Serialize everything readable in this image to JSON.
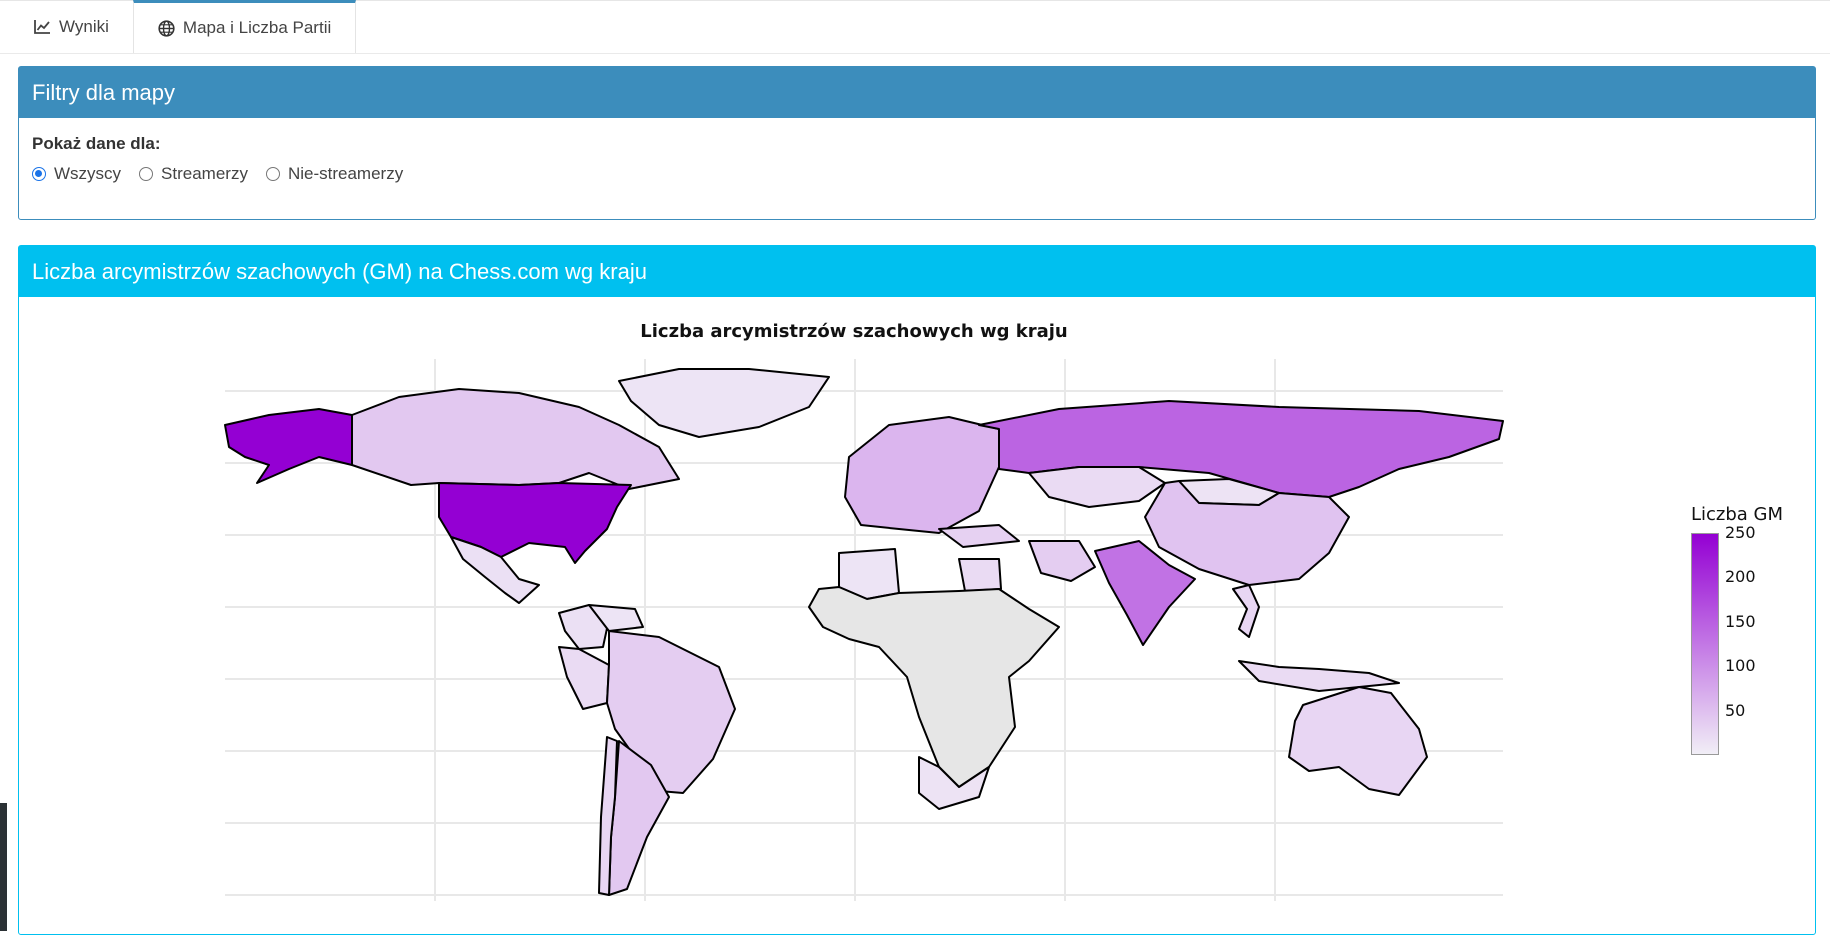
{
  "tabs": [
    {
      "label": "Wyniki",
      "icon": "line-chart-icon",
      "active": false
    },
    {
      "label": "Mapa i Liczba Partii",
      "icon": "globe-icon",
      "active": true
    }
  ],
  "filters": {
    "title": "Filtry dla mapy",
    "label": "Pokaż dane dla:",
    "options": [
      "Wszyscy",
      "Streamerzy",
      "Nie-streamerzy"
    ],
    "selected": "Wszyscy"
  },
  "map_box": {
    "title": "Liczba arcymistrzów szachowych (GM) na Chess.com wg kraju"
  },
  "chart_data": {
    "type": "choropleth",
    "title": "Liczba arcymistrzów szachowych wg kraju",
    "colorbar_title": "Liczba GM",
    "colorbar_ticks": [
      250,
      200,
      150,
      100,
      50
    ],
    "color_range": [
      0,
      250
    ],
    "colorscale": [
      "#f1eef6",
      "#9400d3"
    ],
    "no_data_color": "#e6e6e6",
    "values": [
      {
        "region": "USA",
        "value": 250
      },
      {
        "region": "Alaska",
        "value": 250
      },
      {
        "region": "Russia",
        "value": 145
      },
      {
        "region": "India",
        "value": 130
      },
      {
        "region": "Canada",
        "value": 40
      },
      {
        "region": "China",
        "value": 45
      },
      {
        "region": "Kazakhstan",
        "value": 20
      },
      {
        "region": "Argentina",
        "value": 40
      },
      {
        "region": "Brazil",
        "value": 35
      },
      {
        "region": "Australia",
        "value": 25
      },
      {
        "region": "Mexico",
        "value": 15
      },
      {
        "region": "Greenland",
        "value": 10
      },
      {
        "region": "Mongolia",
        "value": 12
      },
      {
        "region": "Peru",
        "value": 20
      },
      {
        "region": "Chile",
        "value": 25
      },
      {
        "region": "Colombia",
        "value": 15
      },
      {
        "region": "Venezuela",
        "value": 10
      },
      {
        "region": "Algeria",
        "value": 10
      },
      {
        "region": "Egypt",
        "value": 20
      },
      {
        "region": "Turkey",
        "value": 30
      },
      {
        "region": "Iran",
        "value": 35
      },
      {
        "region": "South Africa",
        "value": 12
      },
      {
        "region": "Indonesia",
        "value": 20
      },
      {
        "region": "Vietnam",
        "value": 25
      },
      {
        "region": "Europe",
        "value": 60
      }
    ]
  }
}
